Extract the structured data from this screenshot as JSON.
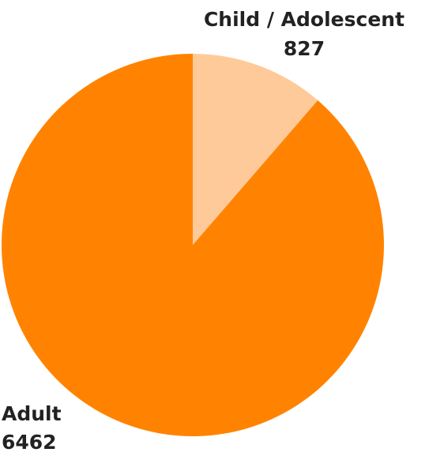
{
  "chart_data": {
    "type": "pie",
    "title": "",
    "start_angle_deg": 0,
    "direction": "clockwise",
    "slices": [
      {
        "label": "Child / Adolescent",
        "value": 827,
        "value_label": "827",
        "color": "#FFCA99"
      },
      {
        "label": "Adult",
        "value": 6462,
        "value_label": "6462",
        "color": "#FF8300"
      }
    ]
  }
}
